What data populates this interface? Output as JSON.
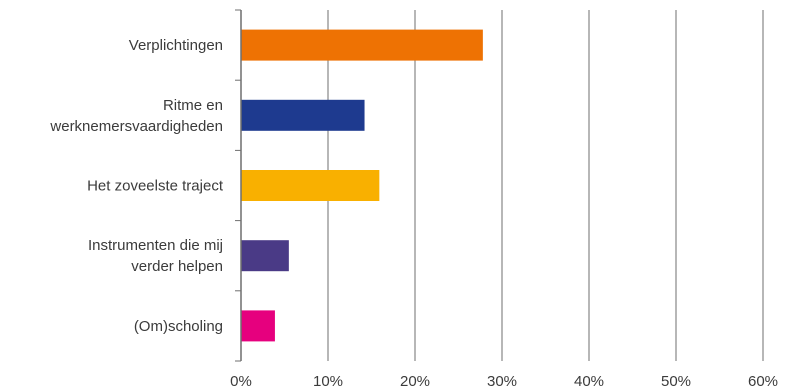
{
  "chart_data": {
    "type": "bar",
    "orientation": "horizontal",
    "categories": [
      [
        "Verplichtingen"
      ],
      [
        "Ritme en",
        "werknemersvaardigheden"
      ],
      [
        "Het zoveelste traject"
      ],
      [
        "Instrumenten die mij",
        "verder helpen"
      ],
      [
        "(Om)scholing"
      ]
    ],
    "values": [
      27.8,
      14.2,
      15.9,
      5.5,
      3.9
    ],
    "colors": [
      "#ee7203",
      "#1e3a8f",
      "#f9b000",
      "#4a3a86",
      "#e6007e"
    ],
    "x_ticks": [
      "0%",
      "10%",
      "20%",
      "30%",
      "40%",
      "50%",
      "60%"
    ],
    "xlim": [
      0,
      60
    ],
    "unit": "%",
    "grid": "vertical",
    "legend": "none"
  }
}
